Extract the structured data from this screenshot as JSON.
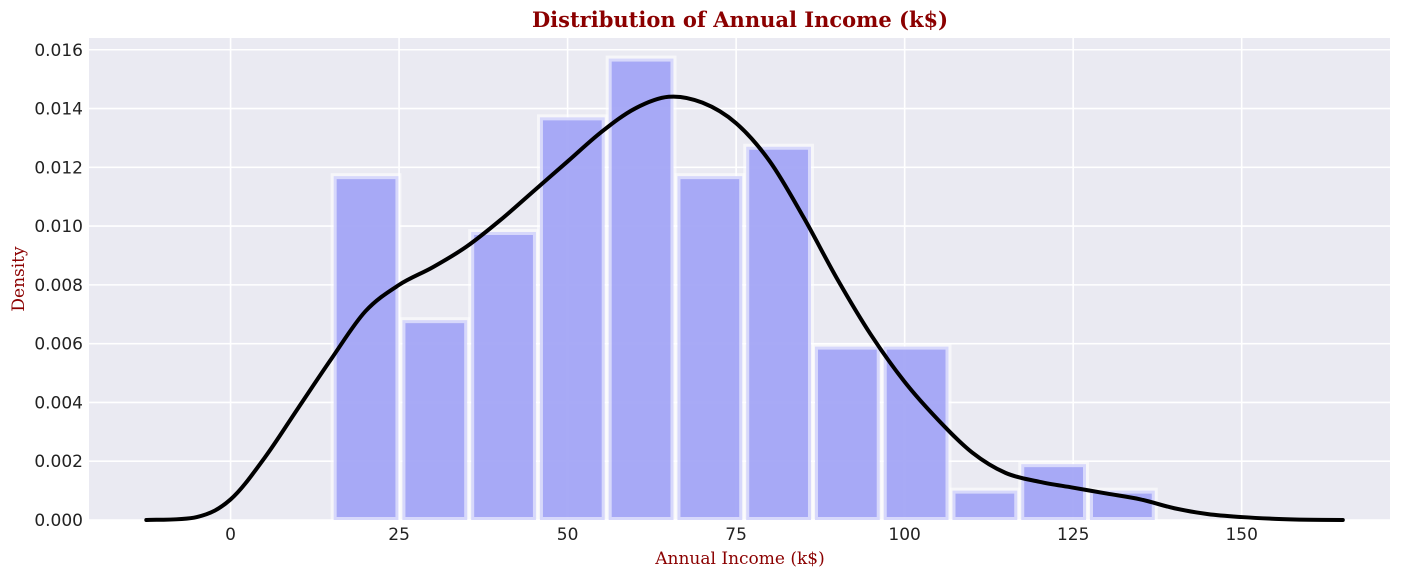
{
  "chart_data": {
    "type": "bar",
    "title": "Distribution of Annual Income (k$)",
    "xlabel": "Annual Income (k$)",
    "ylabel": "Density",
    "xlim": [
      -21,
      172
    ],
    "ylim": [
      0,
      0.0164
    ],
    "xticks": [
      0,
      25,
      50,
      75,
      100,
      125,
      150
    ],
    "xtick_labels": [
      "0",
      "25",
      "50",
      "75",
      "100",
      "125",
      "150"
    ],
    "yticks": [
      0,
      0.002,
      0.004,
      0.006,
      0.008,
      0.01,
      0.012,
      0.014,
      0.016
    ],
    "ytick_labels": [
      "0.000",
      "0.002",
      "0.004",
      "0.006",
      "0.008",
      "0.010",
      "0.012",
      "0.014",
      "0.016"
    ],
    "grid": true,
    "bins": [
      {
        "x0": 15,
        "x1": 25.2,
        "density": 0.0117
      },
      {
        "x0": 25.2,
        "x1": 35.4,
        "density": 0.0068
      },
      {
        "x0": 35.4,
        "x1": 45.6,
        "density": 0.0098
      },
      {
        "x0": 45.6,
        "x1": 55.8,
        "density": 0.0137
      },
      {
        "x0": 55.8,
        "x1": 66.0,
        "density": 0.0157
      },
      {
        "x0": 66.0,
        "x1": 76.2,
        "density": 0.0117
      },
      {
        "x0": 76.2,
        "x1": 86.4,
        "density": 0.0127
      },
      {
        "x0": 86.4,
        "x1": 96.6,
        "density": 0.0059
      },
      {
        "x0": 96.6,
        "x1": 106.8,
        "density": 0.0059
      },
      {
        "x0": 106.8,
        "x1": 117.0,
        "density": 0.001
      },
      {
        "x0": 117.0,
        "x1": 127.2,
        "density": 0.0019
      },
      {
        "x0": 127.2,
        "x1": 137.4,
        "density": 0.001
      }
    ],
    "kde": {
      "x": [
        -12.5,
        -5,
        0,
        5,
        10,
        15,
        20,
        25,
        30,
        35,
        40,
        45,
        50,
        55,
        60,
        65,
        70,
        75,
        80,
        85,
        90,
        95,
        100,
        105,
        110,
        115,
        120,
        125,
        130,
        135,
        140,
        145,
        150,
        155,
        160,
        165
      ],
      "y": [
        0.0,
        0.0001,
        0.0007,
        0.0021,
        0.0038,
        0.0055,
        0.0071,
        0.008,
        0.0086,
        0.0093,
        0.0102,
        0.0112,
        0.0122,
        0.0132,
        0.014,
        0.0144,
        0.0142,
        0.0135,
        0.0122,
        0.0103,
        0.0082,
        0.0063,
        0.0047,
        0.0034,
        0.0023,
        0.0016,
        0.0013,
        0.0011,
        0.0009,
        0.0007,
        0.0004,
        0.0002,
        0.0001,
        4e-05,
        1e-05,
        0.0
      ]
    },
    "colors": {
      "bar_fill": "#a3a5f5",
      "bar_edge": "#ffffff",
      "kde_line": "#000000",
      "plot_bg": "#eaeaf2",
      "grid": "#ffffff",
      "text_accent": "#8b0000"
    }
  }
}
